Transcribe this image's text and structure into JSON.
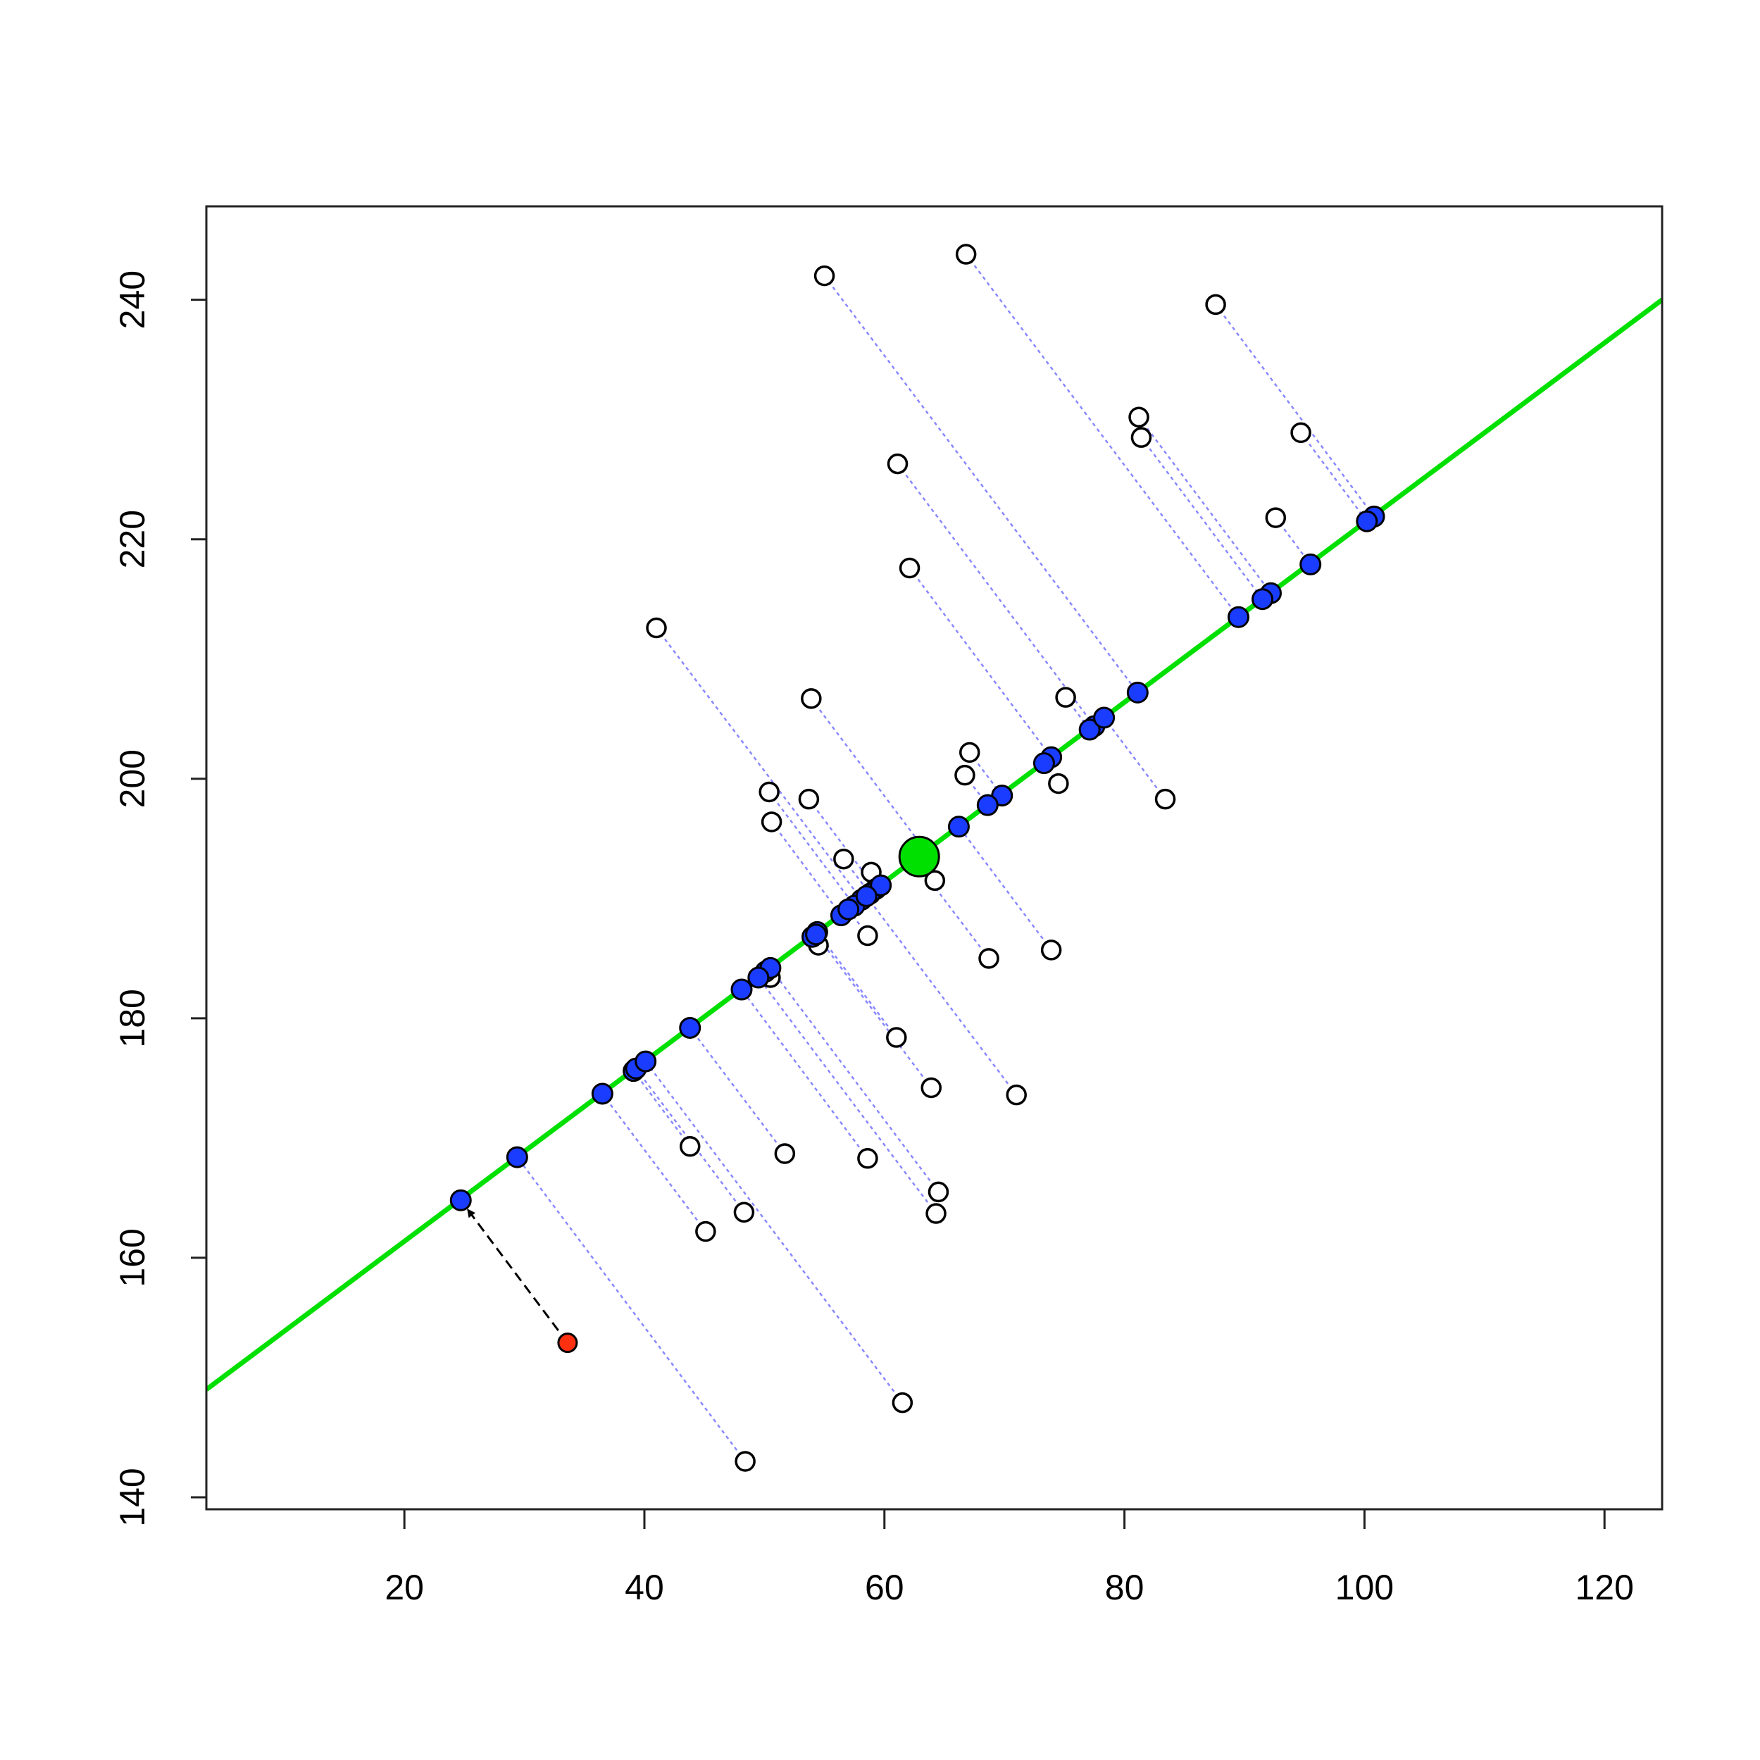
{
  "chart_data": {
    "type": "scatter",
    "xlim": [
      3.5,
      124.8
    ],
    "ylim": [
      139.0,
      247.8
    ],
    "xticks": [
      20,
      40,
      60,
      80,
      100,
      120
    ],
    "yticks": [
      140,
      160,
      180,
      200,
      220,
      240
    ],
    "points": {
      "color": "#ffffff",
      "x": [
        55.0,
        66.8,
        87.6,
        81.2,
        81.4,
        94.7,
        61.1,
        92.6,
        62.1,
        41.0,
        53.9,
        75.1,
        67.1,
        66.7,
        74.5,
        83.4,
        50.4,
        53.7,
        50.6,
        56.6,
        58.9,
        64.2,
        58.6,
        54.5,
        68.7,
        73.9,
        50.5,
        61.0,
        63.9,
        71.0,
        43.8,
        51.7,
        58.6,
        64.5,
        64.3,
        48.3,
        45.1,
        61.5,
        48.4
      ],
      "y": [
        242.0,
        243.8,
        239.6,
        230.2,
        228.5,
        228.9,
        226.3,
        221.8,
        217.6,
        212.6,
        206.7,
        206.8,
        202.2,
        200.3,
        199.6,
        198.3,
        198.9,
        198.3,
        196.4,
        193.3,
        192.2,
        191.5,
        186.9,
        186.1,
        185.0,
        185.7,
        183.4,
        178.4,
        174.2,
        173.6,
        169.3,
        168.7,
        168.3,
        165.5,
        163.7,
        163.8,
        162.2,
        147.9,
        143.0
      ]
    },
    "projections": {
      "color": "#1a3cff",
      "connector_color": "#6b6bff",
      "x": [
        81.1,
        89.5,
        100.8,
        92.2,
        91.5,
        100.2,
        77.5,
        95.5,
        73.9,
        58.1,
        63.5,
        77.1,
        69.8,
        68.6,
        73.3,
        78.3,
        57.5,
        59.3,
        56.4,
        58.8,
        59.7,
        62.8,
        57.0,
        54.0,
        62.5,
        66.2,
        50.1,
        54.4,
        54.3,
        58.5,
        39.1,
        43.8,
        48.1,
        50.5,
        49.5,
        39.3,
        36.5,
        40.1,
        29.4
      ],
      "y": [
        207.2,
        213.5,
        221.9,
        215.5,
        215.0,
        221.5,
        204.4,
        217.9,
        201.8,
        189.9,
        193.9,
        204.1,
        198.6,
        197.8,
        201.3,
        205.1,
        189.4,
        190.8,
        188.6,
        190.4,
        191.1,
        193.4,
        189.1,
        186.8,
        193.2,
        196.0,
        183.9,
        187.2,
        187.0,
        190.2,
        175.6,
        179.2,
        182.4,
        184.2,
        183.4,
        175.8,
        173.7,
        176.4,
        168.4
      ]
    },
    "line": {
      "color": "#00e000",
      "x": [
        3.5,
        124.8
      ],
      "y": [
        149.0,
        240.0
      ]
    },
    "center": {
      "color": "#00e000",
      "x": 62.9,
      "y": 193.5
    },
    "highlight": {
      "color": "#ff3010",
      "x": 33.6,
      "y": 152.9,
      "projection_x": 24.7,
      "projection_y": 164.8
    }
  }
}
